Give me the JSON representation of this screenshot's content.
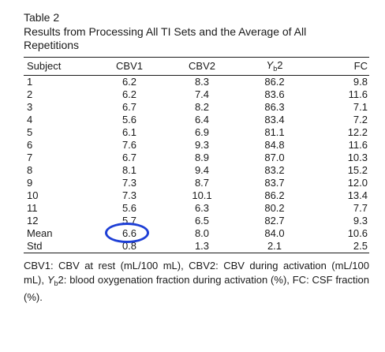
{
  "caption": {
    "label": "Table 2",
    "title": "Results from Processing All TI Sets and the Average of All Repetitions"
  },
  "table": {
    "headers": {
      "subject": "Subject",
      "cbv1": "CBV1",
      "cbv2": "CBV2",
      "yb_main": "Y",
      "yb_sub": "b",
      "yb_tail": "2",
      "fc": "FC"
    },
    "rows": [
      {
        "subject": "1",
        "cbv1": "6.2",
        "cbv2": "8.3",
        "yb2": "86.2",
        "fc": "9.8"
      },
      {
        "subject": "2",
        "cbv1": "6.2",
        "cbv2": "7.4",
        "yb2": "83.6",
        "fc": "11.6"
      },
      {
        "subject": "3",
        "cbv1": "6.7",
        "cbv2": "8.2",
        "yb2": "86.3",
        "fc": "7.1"
      },
      {
        "subject": "4",
        "cbv1": "5.6",
        "cbv2": "6.4",
        "yb2": "83.4",
        "fc": "7.2"
      },
      {
        "subject": "5",
        "cbv1": "6.1",
        "cbv2": "6.9",
        "yb2": "81.1",
        "fc": "12.2"
      },
      {
        "subject": "6",
        "cbv1": "7.6",
        "cbv2": "9.3",
        "yb2": "84.8",
        "fc": "11.6"
      },
      {
        "subject": "7",
        "cbv1": "6.7",
        "cbv2": "8.9",
        "yb2": "87.0",
        "fc": "10.3"
      },
      {
        "subject": "8",
        "cbv1": "8.1",
        "cbv2": "9.4",
        "yb2": "83.2",
        "fc": "15.2"
      },
      {
        "subject": "9",
        "cbv1": "7.3",
        "cbv2": "8.7",
        "yb2": "83.7",
        "fc": "12.0"
      },
      {
        "subject": "10",
        "cbv1": "7.3",
        "cbv2": "10.1",
        "yb2": "86.2",
        "fc": "13.4"
      },
      {
        "subject": "11",
        "cbv1": "5.6",
        "cbv2": "6.3",
        "yb2": "80.2",
        "fc": "7.7"
      },
      {
        "subject": "12",
        "cbv1": "5.7",
        "cbv2": "6.5",
        "yb2": "82.7",
        "fc": "9.3"
      },
      {
        "subject": "Mean",
        "cbv1": "6.6",
        "cbv2": "8.0",
        "yb2": "84.0",
        "fc": "10.6"
      },
      {
        "subject": "Std",
        "cbv1": "0.8",
        "cbv2": "1.3",
        "yb2": "2.1",
        "fc": "2.5"
      }
    ],
    "highlight": {
      "row_subject": "Mean",
      "column": "CBV1",
      "color": "#1e3fd6"
    }
  },
  "footnote": {
    "part1": "CBV1: CBV at rest (mL/100 mL), CBV2: CBV during activation (mL/100 mL), ",
    "yb_main": "Y",
    "yb_sub": "b",
    "part2": "2: blood oxygenation fraction during activation (%), FC: CSF fraction (%)."
  }
}
